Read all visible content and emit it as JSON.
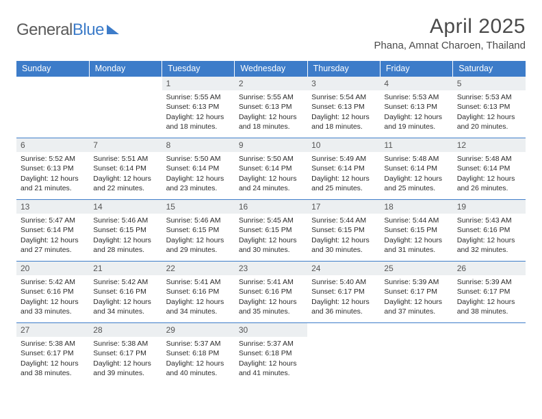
{
  "brand": {
    "part1": "General",
    "part2": "Blue"
  },
  "title": "April 2025",
  "location": "Phana, Amnat Charoen, Thailand",
  "theme": {
    "accent": "#3d7cc9",
    "daynum_bg": "#eceff1",
    "text_muted": "#545454",
    "header_fontsize_pt": 30,
    "body_fontsize_pt": 10.5
  },
  "weekdays": [
    "Sunday",
    "Monday",
    "Tuesday",
    "Wednesday",
    "Thursday",
    "Friday",
    "Saturday"
  ],
  "first_weekday_index": 2,
  "days": [
    {
      "n": 1,
      "sunrise": "5:55 AM",
      "sunset": "6:13 PM",
      "daylight": "12 hours and 18 minutes."
    },
    {
      "n": 2,
      "sunrise": "5:55 AM",
      "sunset": "6:13 PM",
      "daylight": "12 hours and 18 minutes."
    },
    {
      "n": 3,
      "sunrise": "5:54 AM",
      "sunset": "6:13 PM",
      "daylight": "12 hours and 18 minutes."
    },
    {
      "n": 4,
      "sunrise": "5:53 AM",
      "sunset": "6:13 PM",
      "daylight": "12 hours and 19 minutes."
    },
    {
      "n": 5,
      "sunrise": "5:53 AM",
      "sunset": "6:13 PM",
      "daylight": "12 hours and 20 minutes."
    },
    {
      "n": 6,
      "sunrise": "5:52 AM",
      "sunset": "6:13 PM",
      "daylight": "12 hours and 21 minutes."
    },
    {
      "n": 7,
      "sunrise": "5:51 AM",
      "sunset": "6:14 PM",
      "daylight": "12 hours and 22 minutes."
    },
    {
      "n": 8,
      "sunrise": "5:50 AM",
      "sunset": "6:14 PM",
      "daylight": "12 hours and 23 minutes."
    },
    {
      "n": 9,
      "sunrise": "5:50 AM",
      "sunset": "6:14 PM",
      "daylight": "12 hours and 24 minutes."
    },
    {
      "n": 10,
      "sunrise": "5:49 AM",
      "sunset": "6:14 PM",
      "daylight": "12 hours and 25 minutes."
    },
    {
      "n": 11,
      "sunrise": "5:48 AM",
      "sunset": "6:14 PM",
      "daylight": "12 hours and 25 minutes."
    },
    {
      "n": 12,
      "sunrise": "5:48 AM",
      "sunset": "6:14 PM",
      "daylight": "12 hours and 26 minutes."
    },
    {
      "n": 13,
      "sunrise": "5:47 AM",
      "sunset": "6:14 PM",
      "daylight": "12 hours and 27 minutes."
    },
    {
      "n": 14,
      "sunrise": "5:46 AM",
      "sunset": "6:15 PM",
      "daylight": "12 hours and 28 minutes."
    },
    {
      "n": 15,
      "sunrise": "5:46 AM",
      "sunset": "6:15 PM",
      "daylight": "12 hours and 29 minutes."
    },
    {
      "n": 16,
      "sunrise": "5:45 AM",
      "sunset": "6:15 PM",
      "daylight": "12 hours and 30 minutes."
    },
    {
      "n": 17,
      "sunrise": "5:44 AM",
      "sunset": "6:15 PM",
      "daylight": "12 hours and 30 minutes."
    },
    {
      "n": 18,
      "sunrise": "5:44 AM",
      "sunset": "6:15 PM",
      "daylight": "12 hours and 31 minutes."
    },
    {
      "n": 19,
      "sunrise": "5:43 AM",
      "sunset": "6:16 PM",
      "daylight": "12 hours and 32 minutes."
    },
    {
      "n": 20,
      "sunrise": "5:42 AM",
      "sunset": "6:16 PM",
      "daylight": "12 hours and 33 minutes."
    },
    {
      "n": 21,
      "sunrise": "5:42 AM",
      "sunset": "6:16 PM",
      "daylight": "12 hours and 34 minutes."
    },
    {
      "n": 22,
      "sunrise": "5:41 AM",
      "sunset": "6:16 PM",
      "daylight": "12 hours and 34 minutes."
    },
    {
      "n": 23,
      "sunrise": "5:41 AM",
      "sunset": "6:16 PM",
      "daylight": "12 hours and 35 minutes."
    },
    {
      "n": 24,
      "sunrise": "5:40 AM",
      "sunset": "6:17 PM",
      "daylight": "12 hours and 36 minutes."
    },
    {
      "n": 25,
      "sunrise": "5:39 AM",
      "sunset": "6:17 PM",
      "daylight": "12 hours and 37 minutes."
    },
    {
      "n": 26,
      "sunrise": "5:39 AM",
      "sunset": "6:17 PM",
      "daylight": "12 hours and 38 minutes."
    },
    {
      "n": 27,
      "sunrise": "5:38 AM",
      "sunset": "6:17 PM",
      "daylight": "12 hours and 38 minutes."
    },
    {
      "n": 28,
      "sunrise": "5:38 AM",
      "sunset": "6:17 PM",
      "daylight": "12 hours and 39 minutes."
    },
    {
      "n": 29,
      "sunrise": "5:37 AM",
      "sunset": "6:18 PM",
      "daylight": "12 hours and 40 minutes."
    },
    {
      "n": 30,
      "sunrise": "5:37 AM",
      "sunset": "6:18 PM",
      "daylight": "12 hours and 41 minutes."
    }
  ],
  "labels": {
    "sunrise": "Sunrise:",
    "sunset": "Sunset:",
    "daylight": "Daylight:"
  }
}
